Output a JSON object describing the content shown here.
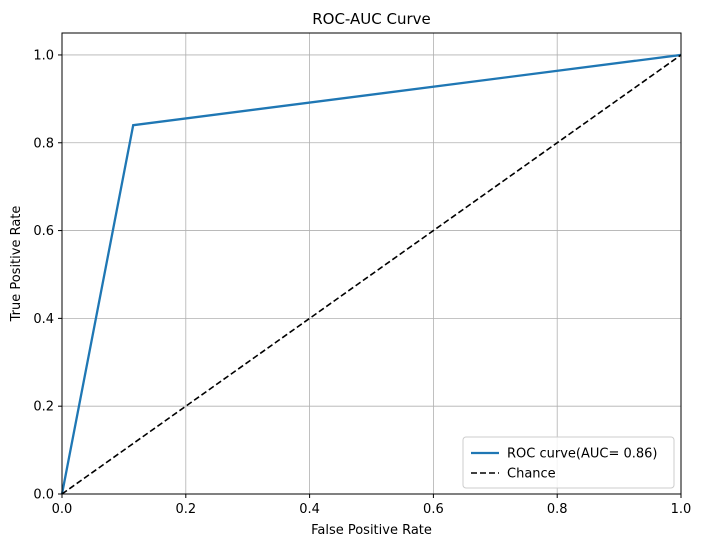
{
  "chart_data": {
    "type": "line",
    "title": "ROC-AUC Curve",
    "xlabel": "False Positive Rate",
    "ylabel": "True Positive Rate",
    "xlim": [
      0,
      1
    ],
    "ylim": [
      0,
      1.05
    ],
    "x_ticks": [
      "0.0",
      "0.2",
      "0.4",
      "0.6",
      "0.8",
      "1.0"
    ],
    "y_ticks": [
      "0.0",
      "0.2",
      "0.4",
      "0.6",
      "0.8",
      "1.0"
    ],
    "grid": true,
    "legend_position": "lower-right",
    "series": [
      {
        "name": "ROC curve(AUC= 0.86)",
        "color": "#1f77b4",
        "style": "solid",
        "x": [
          0.0,
          0.115,
          1.0
        ],
        "y": [
          0.0,
          0.84,
          1.0
        ]
      },
      {
        "name": "Chance",
        "color": "#000000",
        "style": "dashed",
        "x": [
          0.0,
          1.0
        ],
        "y": [
          0.0,
          1.0
        ]
      }
    ]
  }
}
